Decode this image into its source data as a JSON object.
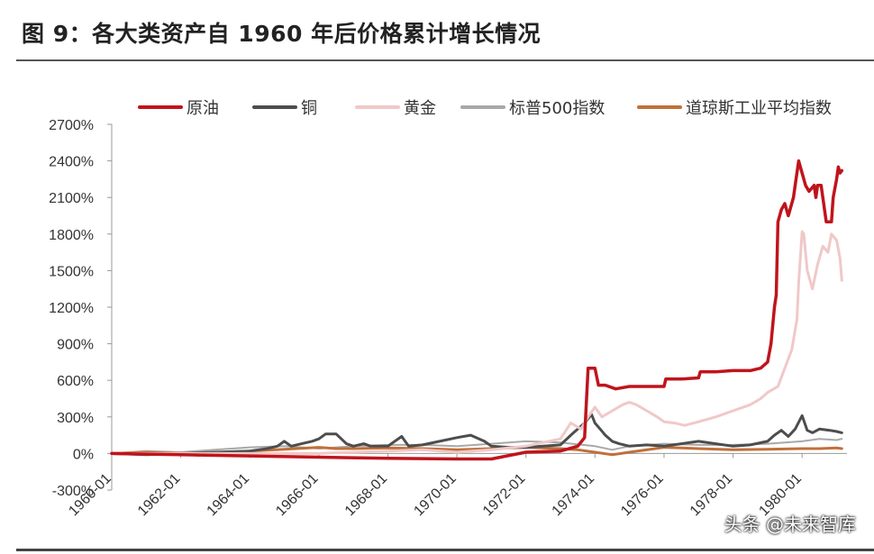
{
  "title": "图 9：各大类资产自 1960 年后价格累计增长情况",
  "watermark": "头条 @未来智库",
  "chart_data": {
    "type": "line",
    "title": "图 9：各大类资产自 1960 年后价格累计增长情况",
    "xlabel": "",
    "ylabel": "",
    "ylim": [
      -300,
      2700
    ],
    "yticks": [
      -300,
      0,
      300,
      600,
      900,
      1200,
      1500,
      1800,
      2100,
      2400,
      2700
    ],
    "ytick_labels": [
      "-300%",
      "0%",
      "300%",
      "600%",
      "900%",
      "1200%",
      "1500%",
      "1800%",
      "2100%",
      "2400%",
      "2700%"
    ],
    "xlim": [
      1960.0,
      1981.3
    ],
    "xticks": [
      1960.0,
      1962.0,
      1964.0,
      1966.0,
      1968.0,
      1970.0,
      1972.0,
      1974.0,
      1976.0,
      1978.0,
      1980.0
    ],
    "xtick_labels": [
      "1960-01",
      "1962-01",
      "1964-01",
      "1966-01",
      "1968-01",
      "1970-01",
      "1972-01",
      "1974-01",
      "1976-01",
      "1978-01",
      "1980-01"
    ],
    "legend_position": "top",
    "series": [
      {
        "name": "原油",
        "color": "#c0141c",
        "width": 3.5,
        "x": [
          1960.0,
          1962.0,
          1964.0,
          1966.0,
          1968.0,
          1970.0,
          1971.0,
          1972.0,
          1973.0,
          1973.5,
          1973.7,
          1973.8,
          1973.85,
          1974.0,
          1974.1,
          1974.3,
          1974.6,
          1975.0,
          1975.5,
          1976.0,
          1976.05,
          1976.5,
          1977.0,
          1977.05,
          1977.5,
          1978.0,
          1978.5,
          1978.8,
          1979.0,
          1979.1,
          1979.2,
          1979.25,
          1979.3,
          1979.4,
          1979.5,
          1979.6,
          1979.7,
          1979.75,
          1979.8,
          1979.9,
          1980.0,
          1980.1,
          1980.2,
          1980.35,
          1980.4,
          1980.45,
          1980.55,
          1980.7,
          1980.85,
          1980.9,
          1981.0,
          1981.05,
          1981.1,
          1981.15
        ],
        "values": [
          0,
          -10,
          -20,
          -30,
          -40,
          -45,
          -45,
          10,
          20,
          60,
          130,
          700,
          700,
          700,
          560,
          560,
          530,
          550,
          550,
          550,
          610,
          610,
          620,
          670,
          670,
          680,
          680,
          700,
          750,
          900,
          1200,
          1300,
          1900,
          2000,
          2050,
          1950,
          2050,
          2100,
          2200,
          2400,
          2300,
          2200,
          2150,
          2200,
          2100,
          2200,
          2200,
          1900,
          1900,
          2100,
          2250,
          2350,
          2300,
          2320
        ]
      },
      {
        "name": "铜",
        "color": "#4d4d4d",
        "width": 3,
        "x": [
          1960.0,
          1961.0,
          1962.0,
          1963.0,
          1964.0,
          1964.5,
          1964.8,
          1965.0,
          1965.2,
          1965.5,
          1965.8,
          1966.0,
          1966.2,
          1966.5,
          1966.8,
          1967.0,
          1967.3,
          1967.5,
          1967.8,
          1968.0,
          1968.2,
          1968.4,
          1968.6,
          1969.0,
          1969.5,
          1970.0,
          1970.4,
          1970.8,
          1971.0,
          1971.5,
          1972.0,
          1972.5,
          1973.0,
          1973.3,
          1973.5,
          1973.7,
          1973.9,
          1974.0,
          1974.15,
          1974.3,
          1974.5,
          1974.7,
          1975.0,
          1975.5,
          1976.0,
          1976.5,
          1977.0,
          1977.5,
          1978.0,
          1978.5,
          1979.0,
          1979.2,
          1979.4,
          1979.6,
          1979.8,
          1980.0,
          1980.15,
          1980.3,
          1980.5,
          1980.8,
          1981.0,
          1981.15
        ],
        "values": [
          0,
          -10,
          0,
          10,
          20,
          40,
          60,
          100,
          60,
          80,
          100,
          120,
          160,
          160,
          80,
          60,
          80,
          60,
          60,
          60,
          100,
          140,
          60,
          70,
          100,
          130,
          150,
          100,
          60,
          50,
          50,
          60,
          70,
          150,
          200,
          250,
          320,
          250,
          200,
          150,
          100,
          80,
          60,
          70,
          60,
          80,
          100,
          80,
          60,
          70,
          100,
          150,
          190,
          140,
          200,
          310,
          190,
          170,
          200,
          190,
          180,
          170
        ]
      },
      {
        "name": "黄金",
        "color": "#f0c8c8",
        "width": 3,
        "x": [
          1960.0,
          1962.0,
          1964.0,
          1966.0,
          1968.0,
          1969.0,
          1970.0,
          1971.0,
          1972.0,
          1972.5,
          1973.0,
          1973.3,
          1973.6,
          1973.8,
          1974.0,
          1974.2,
          1974.5,
          1974.8,
          1975.0,
          1975.2,
          1975.5,
          1975.8,
          1976.0,
          1976.3,
          1976.6,
          1977.0,
          1977.5,
          1978.0,
          1978.5,
          1978.8,
          1979.0,
          1979.3,
          1979.5,
          1979.7,
          1979.85,
          1979.9,
          1980.0,
          1980.05,
          1980.15,
          1980.3,
          1980.45,
          1980.6,
          1980.75,
          1980.85,
          1981.0,
          1981.1,
          1981.15
        ],
        "values": [
          0,
          0,
          0,
          0,
          20,
          30,
          10,
          30,
          60,
          90,
          120,
          250,
          200,
          300,
          380,
          300,
          350,
          400,
          420,
          400,
          350,
          300,
          260,
          250,
          230,
          260,
          300,
          350,
          400,
          450,
          500,
          550,
          700,
          850,
          1100,
          1400,
          1820,
          1800,
          1500,
          1350,
          1550,
          1700,
          1650,
          1800,
          1750,
          1600,
          1420
        ]
      },
      {
        "name": "标普500指数",
        "color": "#a8a8a8",
        "width": 2,
        "x": [
          1960.0,
          1961.0,
          1962.0,
          1963.0,
          1964.0,
          1965.0,
          1966.0,
          1967.0,
          1968.0,
          1969.0,
          1970.0,
          1971.0,
          1972.0,
          1973.0,
          1974.0,
          1974.5,
          1975.0,
          1976.0,
          1977.0,
          1978.0,
          1979.0,
          1980.0,
          1980.5,
          1981.0,
          1981.15
        ],
        "values": [
          0,
          20,
          10,
          30,
          50,
          60,
          40,
          60,
          70,
          70,
          60,
          80,
          100,
          90,
          60,
          30,
          60,
          80,
          70,
          70,
          80,
          100,
          120,
          110,
          120
        ]
      },
      {
        "name": "道琼斯工业平均指数",
        "color": "#c0703a",
        "width": 3,
        "x": [
          1960.0,
          1961.0,
          1962.0,
          1962.5,
          1963.0,
          1964.0,
          1965.0,
          1966.0,
          1966.5,
          1967.0,
          1968.0,
          1969.0,
          1970.0,
          1971.0,
          1972.0,
          1973.0,
          1973.5,
          1974.0,
          1974.5,
          1975.0,
          1976.0,
          1977.0,
          1978.0,
          1979.0,
          1980.0,
          1980.5,
          1981.0,
          1981.15
        ],
        "values": [
          0,
          10,
          0,
          -15,
          5,
          20,
          35,
          50,
          40,
          40,
          45,
          40,
          30,
          40,
          50,
          40,
          30,
          10,
          -10,
          10,
          50,
          40,
          30,
          35,
          40,
          40,
          45,
          40
        ]
      }
    ]
  }
}
